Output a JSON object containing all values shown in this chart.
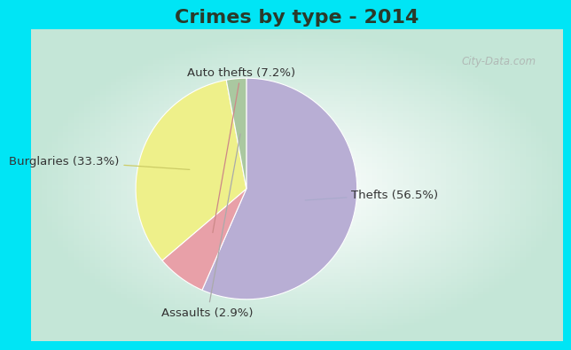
{
  "title": "Crimes by type - 2014",
  "slices": [
    {
      "label": "Thefts (56.5%)",
      "value": 56.5,
      "color": "#b8aed4"
    },
    {
      "label": "Auto thefts (7.2%)",
      "value": 7.2,
      "color": "#e8a0a8"
    },
    {
      "label": "Burglaries (33.3%)",
      "value": 33.3,
      "color": "#eef08a"
    },
    {
      "label": "Assaults (2.9%)",
      "value": 2.9,
      "color": "#aac8a0"
    }
  ],
  "background_cyan": "#00e5f5",
  "title_color": "#2a3a2a",
  "title_fontsize": 16,
  "label_fontsize": 9.5,
  "watermark": "City-Data.com",
  "watermark_color": "#aaaaaa",
  "label_color": "#333333",
  "arrow_color": "#cc8888",
  "arrow_color_yellow": "#cccc88",
  "arrow_color_grey": "#aaaaaa"
}
